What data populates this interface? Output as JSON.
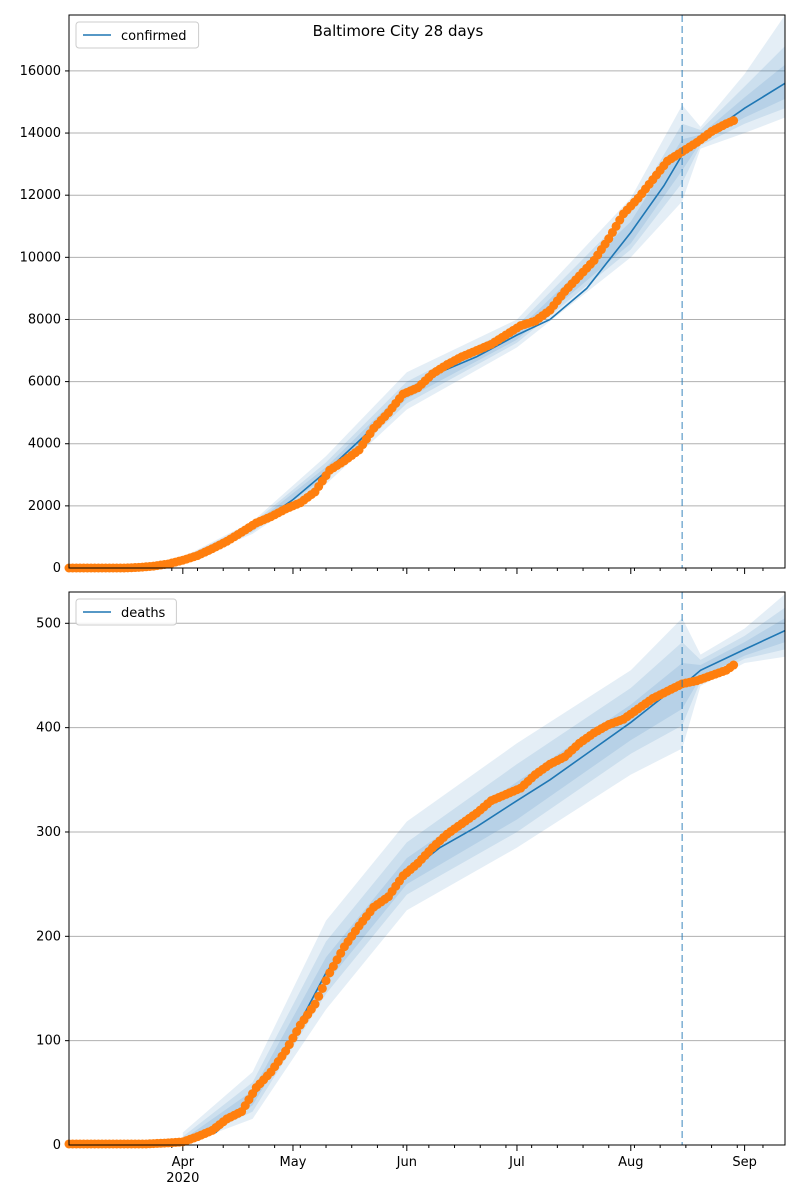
{
  "figure": {
    "title": "Baltimore City 28 days",
    "line_color": "#1f77b4",
    "point_color": "#ff7f0e",
    "grid_color": "#b0b0b0"
  },
  "chart_data": [
    {
      "type": "line",
      "title": "Baltimore City 28 days",
      "legend": {
        "label": "confirmed",
        "placement": "top-left"
      },
      "x_axis": {
        "start": "2020-03-01",
        "end": "2020-09-12",
        "ticks": [],
        "tick_labels": [],
        "grid": false
      },
      "y_axis": {
        "range": [
          0,
          17800
        ],
        "ticks": [
          0,
          2000,
          4000,
          6000,
          8000,
          10000,
          12000,
          14000,
          16000
        ],
        "tick_labels": [
          "0",
          "2000",
          "4000",
          "6000",
          "8000",
          "10000",
          "12000",
          "14000",
          "16000"
        ],
        "grid": true
      },
      "forecast_start": "2020-08-15",
      "model_line": [
        [
          "2020-03-01",
          0
        ],
        [
          "2020-03-26",
          0
        ],
        [
          "2020-04-01",
          250
        ],
        [
          "2020-04-10",
          700
        ],
        [
          "2020-04-20",
          1300
        ],
        [
          "2020-05-01",
          2200
        ],
        [
          "2020-05-10",
          3100
        ],
        [
          "2020-05-20",
          4200
        ],
        [
          "2020-06-01",
          5600
        ],
        [
          "2020-06-10",
          6300
        ],
        [
          "2020-06-20",
          6800
        ],
        [
          "2020-07-01",
          7500
        ],
        [
          "2020-07-10",
          8000
        ],
        [
          "2020-07-20",
          9000
        ],
        [
          "2020-08-01",
          10800
        ],
        [
          "2020-08-10",
          12300
        ],
        [
          "2020-08-15",
          13300
        ],
        [
          "2020-08-20",
          13800
        ],
        [
          "2020-09-01",
          14800
        ],
        [
          "2020-09-12",
          15600
        ]
      ],
      "bands": [
        {
          "lower": [
            [
              "2020-04-01",
              150
            ],
            [
              "2020-04-20",
              1100
            ],
            [
              "2020-05-10",
              2700
            ],
            [
              "2020-06-01",
              5100
            ],
            [
              "2020-07-01",
              7100
            ],
            [
              "2020-08-01",
              10000
            ],
            [
              "2020-08-15",
              11800
            ],
            [
              "2020-08-20",
              13500
            ],
            [
              "2020-09-01",
              14000
            ],
            [
              "2020-09-12",
              14500
            ]
          ],
          "upper": [
            [
              "2020-04-01",
              350
            ],
            [
              "2020-04-20",
              1500
            ],
            [
              "2020-05-10",
              3600
            ],
            [
              "2020-06-01",
              6300
            ],
            [
              "2020-07-01",
              8000
            ],
            [
              "2020-08-01",
              11900
            ],
            [
              "2020-08-15",
              14900
            ],
            [
              "2020-08-20",
              14200
            ],
            [
              "2020-09-01",
              15900
            ],
            [
              "2020-09-12",
              17800
            ]
          ]
        },
        {
          "lower": [
            [
              "2020-04-01",
              180
            ],
            [
              "2020-04-20",
              1160
            ],
            [
              "2020-05-10",
              2850
            ],
            [
              "2020-06-01",
              5300
            ],
            [
              "2020-07-01",
              7250
            ],
            [
              "2020-08-01",
              10250
            ],
            [
              "2020-08-15",
              12400
            ],
            [
              "2020-08-20",
              13600
            ],
            [
              "2020-09-01",
              14300
            ],
            [
              "2020-09-12",
              14800
            ]
          ],
          "upper": [
            [
              "2020-04-01",
              320
            ],
            [
              "2020-04-20",
              1440
            ],
            [
              "2020-05-10",
              3400
            ],
            [
              "2020-06-01",
              6000
            ],
            [
              "2020-07-01",
              7800
            ],
            [
              "2020-08-01",
              11500
            ],
            [
              "2020-08-15",
              14300
            ],
            [
              "2020-08-20",
              14100
            ],
            [
              "2020-09-01",
              15500
            ],
            [
              "2020-09-12",
              16800
            ]
          ]
        },
        {
          "lower": [
            [
              "2020-04-01",
              210
            ],
            [
              "2020-04-20",
              1220
            ],
            [
              "2020-05-10",
              2950
            ],
            [
              "2020-06-01",
              5450
            ],
            [
              "2020-07-01",
              7350
            ],
            [
              "2020-08-01",
              10450
            ],
            [
              "2020-08-15",
              12800
            ],
            [
              "2020-08-20",
              13700
            ],
            [
              "2020-09-01",
              14500
            ],
            [
              "2020-09-12",
              15100
            ]
          ],
          "upper": [
            [
              "2020-04-01",
              290
            ],
            [
              "2020-04-20",
              1380
            ],
            [
              "2020-05-10",
              3250
            ],
            [
              "2020-06-01",
              5800
            ],
            [
              "2020-07-01",
              7650
            ],
            [
              "2020-08-01",
              11150
            ],
            [
              "2020-08-15",
              13800
            ],
            [
              "2020-08-20",
              13950
            ],
            [
              "2020-09-01",
              15150
            ],
            [
              "2020-09-12",
              16200
            ]
          ]
        }
      ],
      "observed": [
        [
          "2020-03-01",
          0
        ],
        [
          "2020-03-06",
          0
        ],
        [
          "2020-03-11",
          0
        ],
        [
          "2020-03-16",
          0
        ],
        [
          "2020-03-20",
          20
        ],
        [
          "2020-03-24",
          60
        ],
        [
          "2020-03-28",
          130
        ],
        [
          "2020-04-01",
          250
        ],
        [
          "2020-04-05",
          400
        ],
        [
          "2020-04-09",
          620
        ],
        [
          "2020-04-13",
          860
        ],
        [
          "2020-04-17",
          1150
        ],
        [
          "2020-04-21",
          1450
        ],
        [
          "2020-04-25",
          1650
        ],
        [
          "2020-04-29",
          1900
        ],
        [
          "2020-05-03",
          2100
        ],
        [
          "2020-05-07",
          2450
        ],
        [
          "2020-05-11",
          3150
        ],
        [
          "2020-05-15",
          3450
        ],
        [
          "2020-05-19",
          3800
        ],
        [
          "2020-05-23",
          4500
        ],
        [
          "2020-05-27",
          5000
        ],
        [
          "2020-05-31",
          5600
        ],
        [
          "2020-06-04",
          5800
        ],
        [
          "2020-06-08",
          6250
        ],
        [
          "2020-06-12",
          6550
        ],
        [
          "2020-06-16",
          6800
        ],
        [
          "2020-06-20",
          7000
        ],
        [
          "2020-06-24",
          7200
        ],
        [
          "2020-06-28",
          7500
        ],
        [
          "2020-07-02",
          7800
        ],
        [
          "2020-07-06",
          7950
        ],
        [
          "2020-07-10",
          8300
        ],
        [
          "2020-07-14",
          8900
        ],
        [
          "2020-07-18",
          9400
        ],
        [
          "2020-07-22",
          9900
        ],
        [
          "2020-07-26",
          10600
        ],
        [
          "2020-07-30",
          11400
        ],
        [
          "2020-08-03",
          11900
        ],
        [
          "2020-08-07",
          12500
        ],
        [
          "2020-08-11",
          13100
        ],
        [
          "2020-08-15",
          13400
        ],
        [
          "2020-08-19",
          13700
        ],
        [
          "2020-08-23",
          14050
        ],
        [
          "2020-08-27",
          14300
        ],
        [
          "2020-08-29",
          14400
        ]
      ]
    },
    {
      "type": "line",
      "legend": {
        "label": "deaths",
        "placement": "top-left"
      },
      "x_axis": {
        "start": "2020-03-01",
        "end": "2020-09-12",
        "ticks": [
          "2020-04-01",
          "2020-05-01",
          "2020-06-01",
          "2020-07-01",
          "2020-08-01",
          "2020-09-01"
        ],
        "tick_labels": [
          "Apr\n2020",
          "May",
          "Jun",
          "Jul",
          "Aug",
          "Sep"
        ],
        "grid": false
      },
      "y_axis": {
        "range": [
          0,
          530
        ],
        "ticks": [
          0,
          100,
          200,
          300,
          400,
          500
        ],
        "tick_labels": [
          "0",
          "100",
          "200",
          "300",
          "400",
          "500"
        ],
        "grid": true
      },
      "forecast_start": "2020-08-15",
      "model_line": [
        [
          "2020-03-01",
          0
        ],
        [
          "2020-03-26",
          0
        ],
        [
          "2020-04-01",
          2
        ],
        [
          "2020-04-10",
          12
        ],
        [
          "2020-04-20",
          45
        ],
        [
          "2020-05-01",
          105
        ],
        [
          "2020-05-10",
          165
        ],
        [
          "2020-05-20",
          215
        ],
        [
          "2020-06-01",
          260
        ],
        [
          "2020-06-10",
          285
        ],
        [
          "2020-06-20",
          305
        ],
        [
          "2020-07-01",
          330
        ],
        [
          "2020-07-10",
          350
        ],
        [
          "2020-07-20",
          375
        ],
        [
          "2020-08-01",
          405
        ],
        [
          "2020-08-10",
          430
        ],
        [
          "2020-08-15",
          440
        ],
        [
          "2020-08-20",
          455
        ],
        [
          "2020-09-01",
          475
        ],
        [
          "2020-09-12",
          493
        ]
      ],
      "bands": [
        {
          "lower": [
            [
              "2020-04-01",
              0
            ],
            [
              "2020-04-20",
              25
            ],
            [
              "2020-05-10",
              130
            ],
            [
              "2020-06-01",
              225
            ],
            [
              "2020-07-01",
              285
            ],
            [
              "2020-08-01",
              355
            ],
            [
              "2020-08-15",
              380
            ],
            [
              "2020-08-20",
              440
            ],
            [
              "2020-09-01",
              462
            ],
            [
              "2020-09-12",
              468
            ]
          ],
          "upper": [
            [
              "2020-04-01",
              12
            ],
            [
              "2020-04-20",
              70
            ],
            [
              "2020-05-10",
              215
            ],
            [
              "2020-06-01",
              310
            ],
            [
              "2020-07-01",
              385
            ],
            [
              "2020-08-01",
              455
            ],
            [
              "2020-08-15",
              505
            ],
            [
              "2020-08-20",
              470
            ],
            [
              "2020-09-01",
              495
            ],
            [
              "2020-09-12",
              528
            ]
          ]
        },
        {
          "lower": [
            [
              "2020-04-01",
              0
            ],
            [
              "2020-04-20",
              32
            ],
            [
              "2020-05-10",
              145
            ],
            [
              "2020-06-01",
              240
            ],
            [
              "2020-07-01",
              300
            ],
            [
              "2020-08-01",
              375
            ],
            [
              "2020-08-15",
              402
            ],
            [
              "2020-08-20",
              445
            ],
            [
              "2020-09-01",
              466
            ],
            [
              "2020-09-12",
              475
            ]
          ],
          "upper": [
            [
              "2020-04-01",
              8
            ],
            [
              "2020-04-20",
              60
            ],
            [
              "2020-05-10",
              195
            ],
            [
              "2020-06-01",
              290
            ],
            [
              "2020-07-01",
              365
            ],
            [
              "2020-08-01",
              438
            ],
            [
              "2020-08-15",
              482
            ],
            [
              "2020-08-20",
              465
            ],
            [
              "2020-09-01",
              488
            ],
            [
              "2020-09-12",
              515
            ]
          ]
        },
        {
          "lower": [
            [
              "2020-04-01",
              0
            ],
            [
              "2020-04-20",
              38
            ],
            [
              "2020-05-10",
              155
            ],
            [
              "2020-06-01",
              250
            ],
            [
              "2020-07-01",
              312
            ],
            [
              "2020-08-01",
              388
            ],
            [
              "2020-08-15",
              418
            ],
            [
              "2020-08-20",
              448
            ],
            [
              "2020-09-01",
              469
            ],
            [
              "2020-09-12",
              482
            ]
          ],
          "upper": [
            [
              "2020-04-01",
              5
            ],
            [
              "2020-04-20",
              52
            ],
            [
              "2020-05-10",
              180
            ],
            [
              "2020-06-01",
              275
            ],
            [
              "2020-07-01",
              348
            ],
            [
              "2020-08-01",
              422
            ],
            [
              "2020-08-15",
              462
            ],
            [
              "2020-08-20",
              460
            ],
            [
              "2020-09-01",
              482
            ],
            [
              "2020-09-12",
              505
            ]
          ]
        }
      ],
      "observed": [
        [
          "2020-03-01",
          1
        ],
        [
          "2020-03-08",
          1
        ],
        [
          "2020-03-15",
          1
        ],
        [
          "2020-03-22",
          1
        ],
        [
          "2020-03-28",
          2
        ],
        [
          "2020-04-01",
          3
        ],
        [
          "2020-04-05",
          8
        ],
        [
          "2020-04-09",
          14
        ],
        [
          "2020-04-13",
          25
        ],
        [
          "2020-04-17",
          32
        ],
        [
          "2020-04-21",
          55
        ],
        [
          "2020-04-25",
          70
        ],
        [
          "2020-04-29",
          90
        ],
        [
          "2020-05-03",
          115
        ],
        [
          "2020-05-07",
          135
        ],
        [
          "2020-05-11",
          165
        ],
        [
          "2020-05-15",
          190
        ],
        [
          "2020-05-19",
          210
        ],
        [
          "2020-05-23",
          228
        ],
        [
          "2020-05-27",
          238
        ],
        [
          "2020-05-31",
          258
        ],
        [
          "2020-06-04",
          270
        ],
        [
          "2020-06-08",
          285
        ],
        [
          "2020-06-12",
          298
        ],
        [
          "2020-06-16",
          308
        ],
        [
          "2020-06-20",
          318
        ],
        [
          "2020-06-24",
          330
        ],
        [
          "2020-06-28",
          336
        ],
        [
          "2020-07-02",
          342
        ],
        [
          "2020-07-06",
          355
        ],
        [
          "2020-07-10",
          365
        ],
        [
          "2020-07-14",
          372
        ],
        [
          "2020-07-18",
          385
        ],
        [
          "2020-07-22",
          395
        ],
        [
          "2020-07-26",
          403
        ],
        [
          "2020-07-30",
          408
        ],
        [
          "2020-08-03",
          418
        ],
        [
          "2020-08-07",
          428
        ],
        [
          "2020-08-11",
          435
        ],
        [
          "2020-08-15",
          442
        ],
        [
          "2020-08-19",
          445
        ],
        [
          "2020-08-23",
          450
        ],
        [
          "2020-08-27",
          455
        ],
        [
          "2020-08-29",
          460
        ]
      ]
    }
  ]
}
